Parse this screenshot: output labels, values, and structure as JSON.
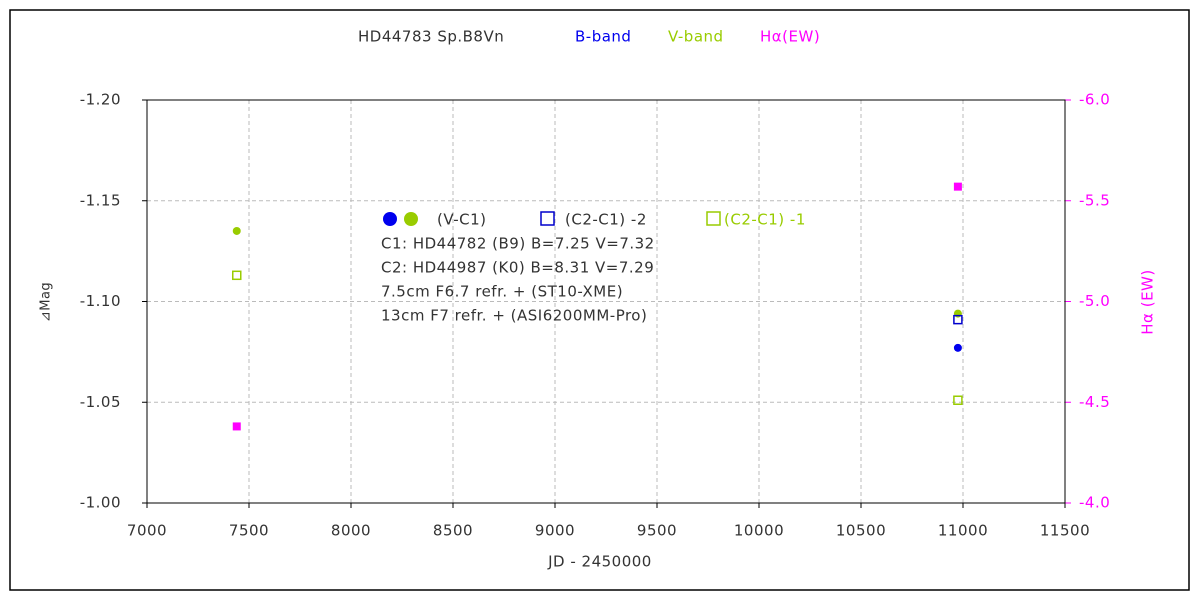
{
  "chart_data": {
    "type": "scatter",
    "title": "HD44783   Sp.B8Vn",
    "xlabel": "JD - 2450000",
    "ylabel": "⊿Mag",
    "y2label": "Hα (EW)",
    "xlim": [
      7000,
      11500
    ],
    "xticks": [
      7000,
      7500,
      8000,
      8500,
      9000,
      9500,
      10000,
      10500,
      11000,
      11500
    ],
    "ylim": [
      -1.0,
      -1.2
    ],
    "yticks": [
      {
        "value": -1.2,
        "label": "-1.20"
      },
      -1.15,
      {
        "value": -1.1,
        "label": "-1.10"
      },
      -1.05,
      {
        "value": -1.0,
        "label": "-1.00"
      }
    ],
    "y2lim": [
      -4.0,
      -6.0
    ],
    "y2ticks": [
      {
        "value": -6.0,
        "label": "-6.0"
      },
      -5.5,
      {
        "value": -5.0,
        "label": "-5.0"
      },
      -4.5,
      {
        "value": -4.0,
        "label": "-4.0"
      }
    ],
    "grid": true,
    "marker_key": "(V-C1)",
    "annotations": [
      "C1: HD44782 (B9)  B=7.25  V=7.32",
      "C2: HD44987 (K0)  B=8.31  V=7.29",
      "7.5cm  F6.7  refr. + (ST10-XME)",
      "13cm  F7  refr. + (ASI6200MM-Pro)"
    ],
    "series": [
      {
        "name": "B-band",
        "color": "#0000ee",
        "marker": "dot",
        "x": [
          10975
        ],
        "values": [
          -1.077
        ]
      },
      {
        "name": "V-band",
        "color": "#99cc00",
        "marker": "dot",
        "x": [
          7440,
          10975
        ],
        "values": [
          -1.135,
          -1.094
        ]
      },
      {
        "name": "(C2-C1) -2",
        "color": "#0000cc",
        "marker": "open-square",
        "x": [
          10975
        ],
        "values": [
          -1.091
        ]
      },
      {
        "name": "(C2-C1) -1",
        "color": "#99cc00",
        "marker": "open-square",
        "x": [
          7440,
          10975
        ],
        "values": [
          -1.113,
          -1.051
        ]
      },
      {
        "name": "Hα(EW)",
        "color": "#ff00ff",
        "marker": "square",
        "axis": "y2",
        "x": [
          7440,
          10975
        ],
        "values": [
          -4.38,
          -5.57
        ]
      }
    ]
  }
}
